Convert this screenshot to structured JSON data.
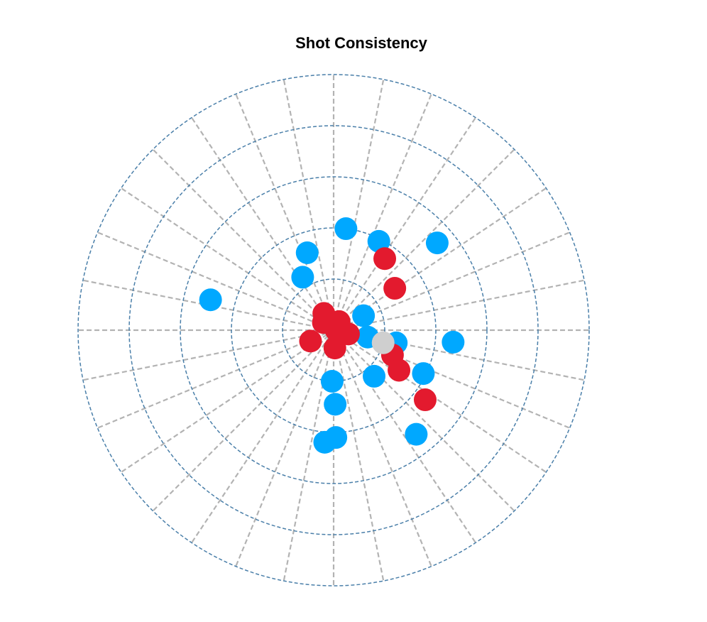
{
  "chart_data": {
    "type": "scatter",
    "subtype": "polar",
    "title": "Shot Consistency",
    "r_max": 5,
    "rings": [
      1,
      2,
      3,
      4,
      5
    ],
    "spoke_count": 32,
    "grid": true,
    "ring_color": "#4a7fa9",
    "spoke_color": "#b3b3b3",
    "series": [
      {
        "color": "#00a8ff",
        "points": [
          [
            1.95,
            1.1
          ],
          [
            2.65,
            0.7
          ],
          [
            2.0,
            1.45
          ],
          [
            1.2,
            2.1
          ],
          [
            1.6,
            1.9
          ],
          [
            2.35,
            -0.1
          ],
          [
            2.2,
            -1.65
          ],
          [
            2.1,
            -1.55
          ],
          [
            1.2,
            -0.85
          ],
          [
            1.0,
            -1.6
          ],
          [
            1.45,
            -1.55
          ],
          [
            2.48,
            2.9
          ],
          [
            2.6,
            -0.9
          ],
          [
            1.95,
            -0.45
          ],
          [
            1.25,
            -0.2
          ],
          [
            0.65,
            0.45
          ],
          [
            0.68,
            -0.2
          ]
        ]
      },
      {
        "color": "#e31a2e",
        "points": [
          [
            0.05,
            0.0
          ],
          [
            0.12,
            -0.6
          ],
          [
            0.2,
            1.0
          ],
          [
            0.38,
            2.1
          ],
          [
            0.5,
            -2.7
          ],
          [
            0.35,
            -1.5
          ],
          [
            0.25,
            2.5
          ],
          [
            1.25,
            -0.4
          ],
          [
            1.5,
            -0.55
          ],
          [
            1.45,
            0.6
          ],
          [
            1.72,
            0.95
          ],
          [
            2.25,
            -0.65
          ],
          [
            0.3,
            -0.25
          ]
        ]
      },
      {
        "color": "#cfcfcf",
        "points": [
          [
            1.0,
            -0.25
          ]
        ]
      }
    ]
  }
}
